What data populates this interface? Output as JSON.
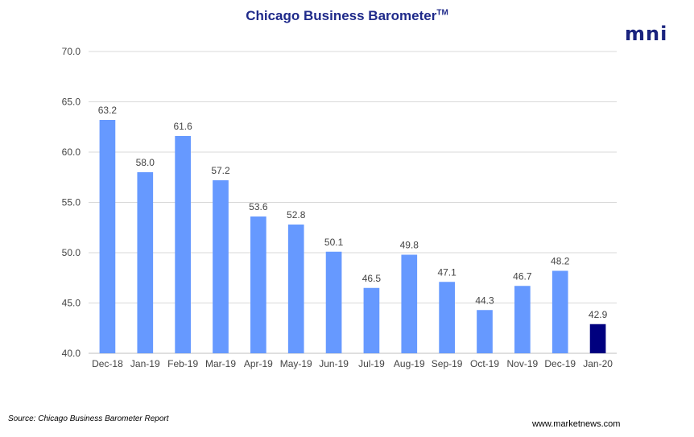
{
  "header": {
    "title": "Chicago Business Barometer",
    "title_sup": "TM",
    "logo_text": "mni"
  },
  "footer": {
    "source": "Source: Chicago Business Barometer Report",
    "site": "www.marketnews.com"
  },
  "chart_data": {
    "type": "bar",
    "categories": [
      "Dec-18",
      "Jan-19",
      "Feb-19",
      "Mar-19",
      "Apr-19",
      "May-19",
      "Jun-19",
      "Jul-19",
      "Aug-19",
      "Sep-19",
      "Oct-19",
      "Nov-19",
      "Dec-19",
      "Jan-20"
    ],
    "values": [
      63.2,
      58.0,
      61.6,
      57.2,
      53.6,
      52.8,
      50.1,
      46.5,
      49.8,
      47.1,
      44.3,
      46.7,
      48.2,
      42.9
    ],
    "data_labels": [
      "63.2",
      "58.0",
      "61.6",
      "57.2",
      "53.6",
      "52.8",
      "50.1",
      "46.5",
      "49.8",
      "47.1",
      "44.3",
      "46.7",
      "48.2",
      "42.9"
    ],
    "ylim": [
      40,
      70
    ],
    "yticks": [
      "40.0",
      "45.0",
      "50.0",
      "55.0",
      "60.0",
      "65.0",
      "70.0"
    ],
    "grid": true,
    "bar_color": "#6699ff",
    "highlight_color": "#00007f",
    "highlight_index": 13
  }
}
